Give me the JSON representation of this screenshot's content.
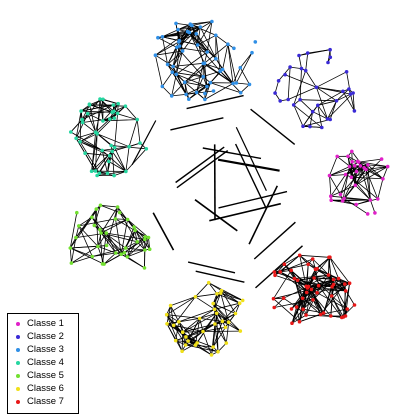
{
  "legend": [
    {
      "label": "Classe 1",
      "color": "#e020c8"
    },
    {
      "label": "Classe 2",
      "color": "#3a2ad6"
    },
    {
      "label": "Classe 3",
      "color": "#2f8fe6"
    },
    {
      "label": "Classe 4",
      "color": "#25d6a0"
    },
    {
      "label": "Classe 5",
      "color": "#72e030"
    },
    {
      "label": "Classe 6",
      "color": "#f0e01a"
    },
    {
      "label": "Classe 7",
      "color": "#e81818"
    }
  ],
  "graph": {
    "edge_color": "#000000",
    "node_counts": [
      30,
      30,
      50,
      40,
      35,
      35,
      50
    ]
  }
}
